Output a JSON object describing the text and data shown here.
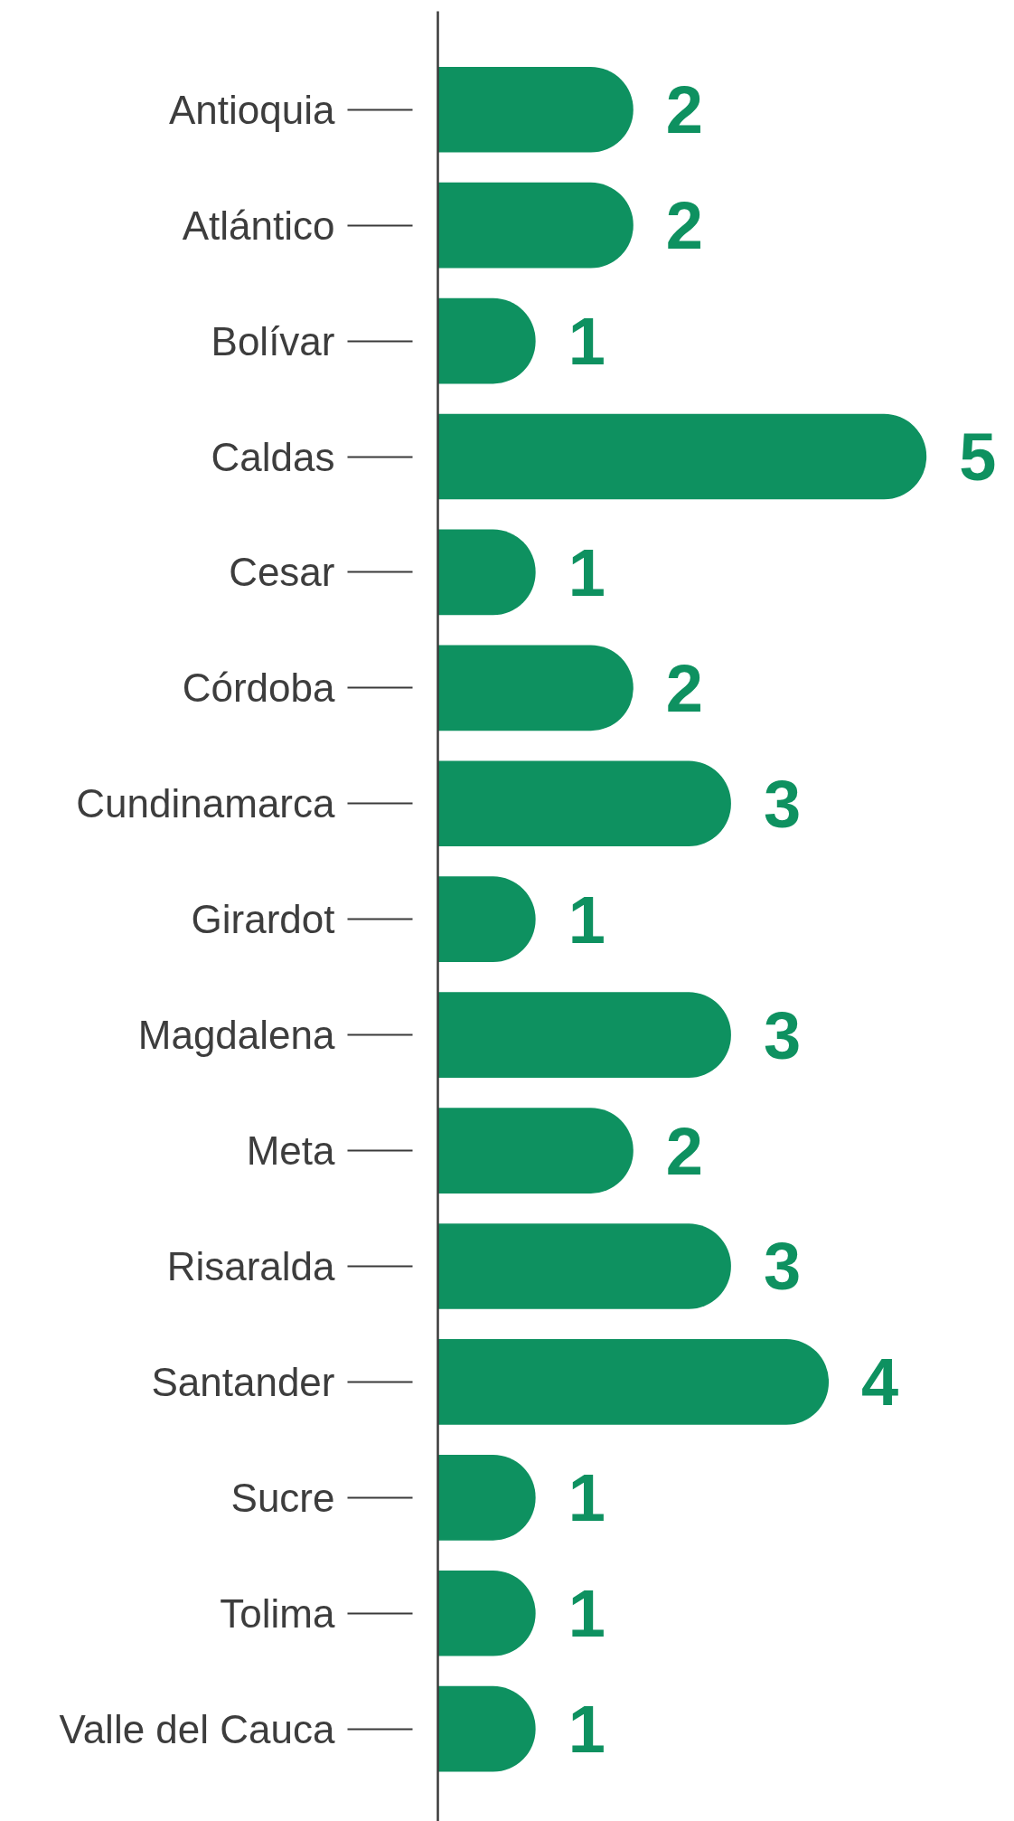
{
  "chart_data": {
    "type": "bar",
    "orientation": "horizontal",
    "tick_labels": "y",
    "data_labels": true,
    "color": "#0e9160",
    "categories": [
      "Antioquia",
      "Atlántico",
      "Bolívar",
      "Caldas",
      "Cesar",
      "Córdoba",
      "Cundinamarca",
      "Girardot",
      "Magdalena",
      "Meta",
      "Risaralda",
      "Santander",
      "Sucre",
      "Tolima",
      "Valle del Cauca"
    ],
    "values": [
      2,
      2,
      1,
      5,
      1,
      2,
      3,
      1,
      3,
      2,
      3,
      4,
      1,
      1,
      1
    ]
  }
}
